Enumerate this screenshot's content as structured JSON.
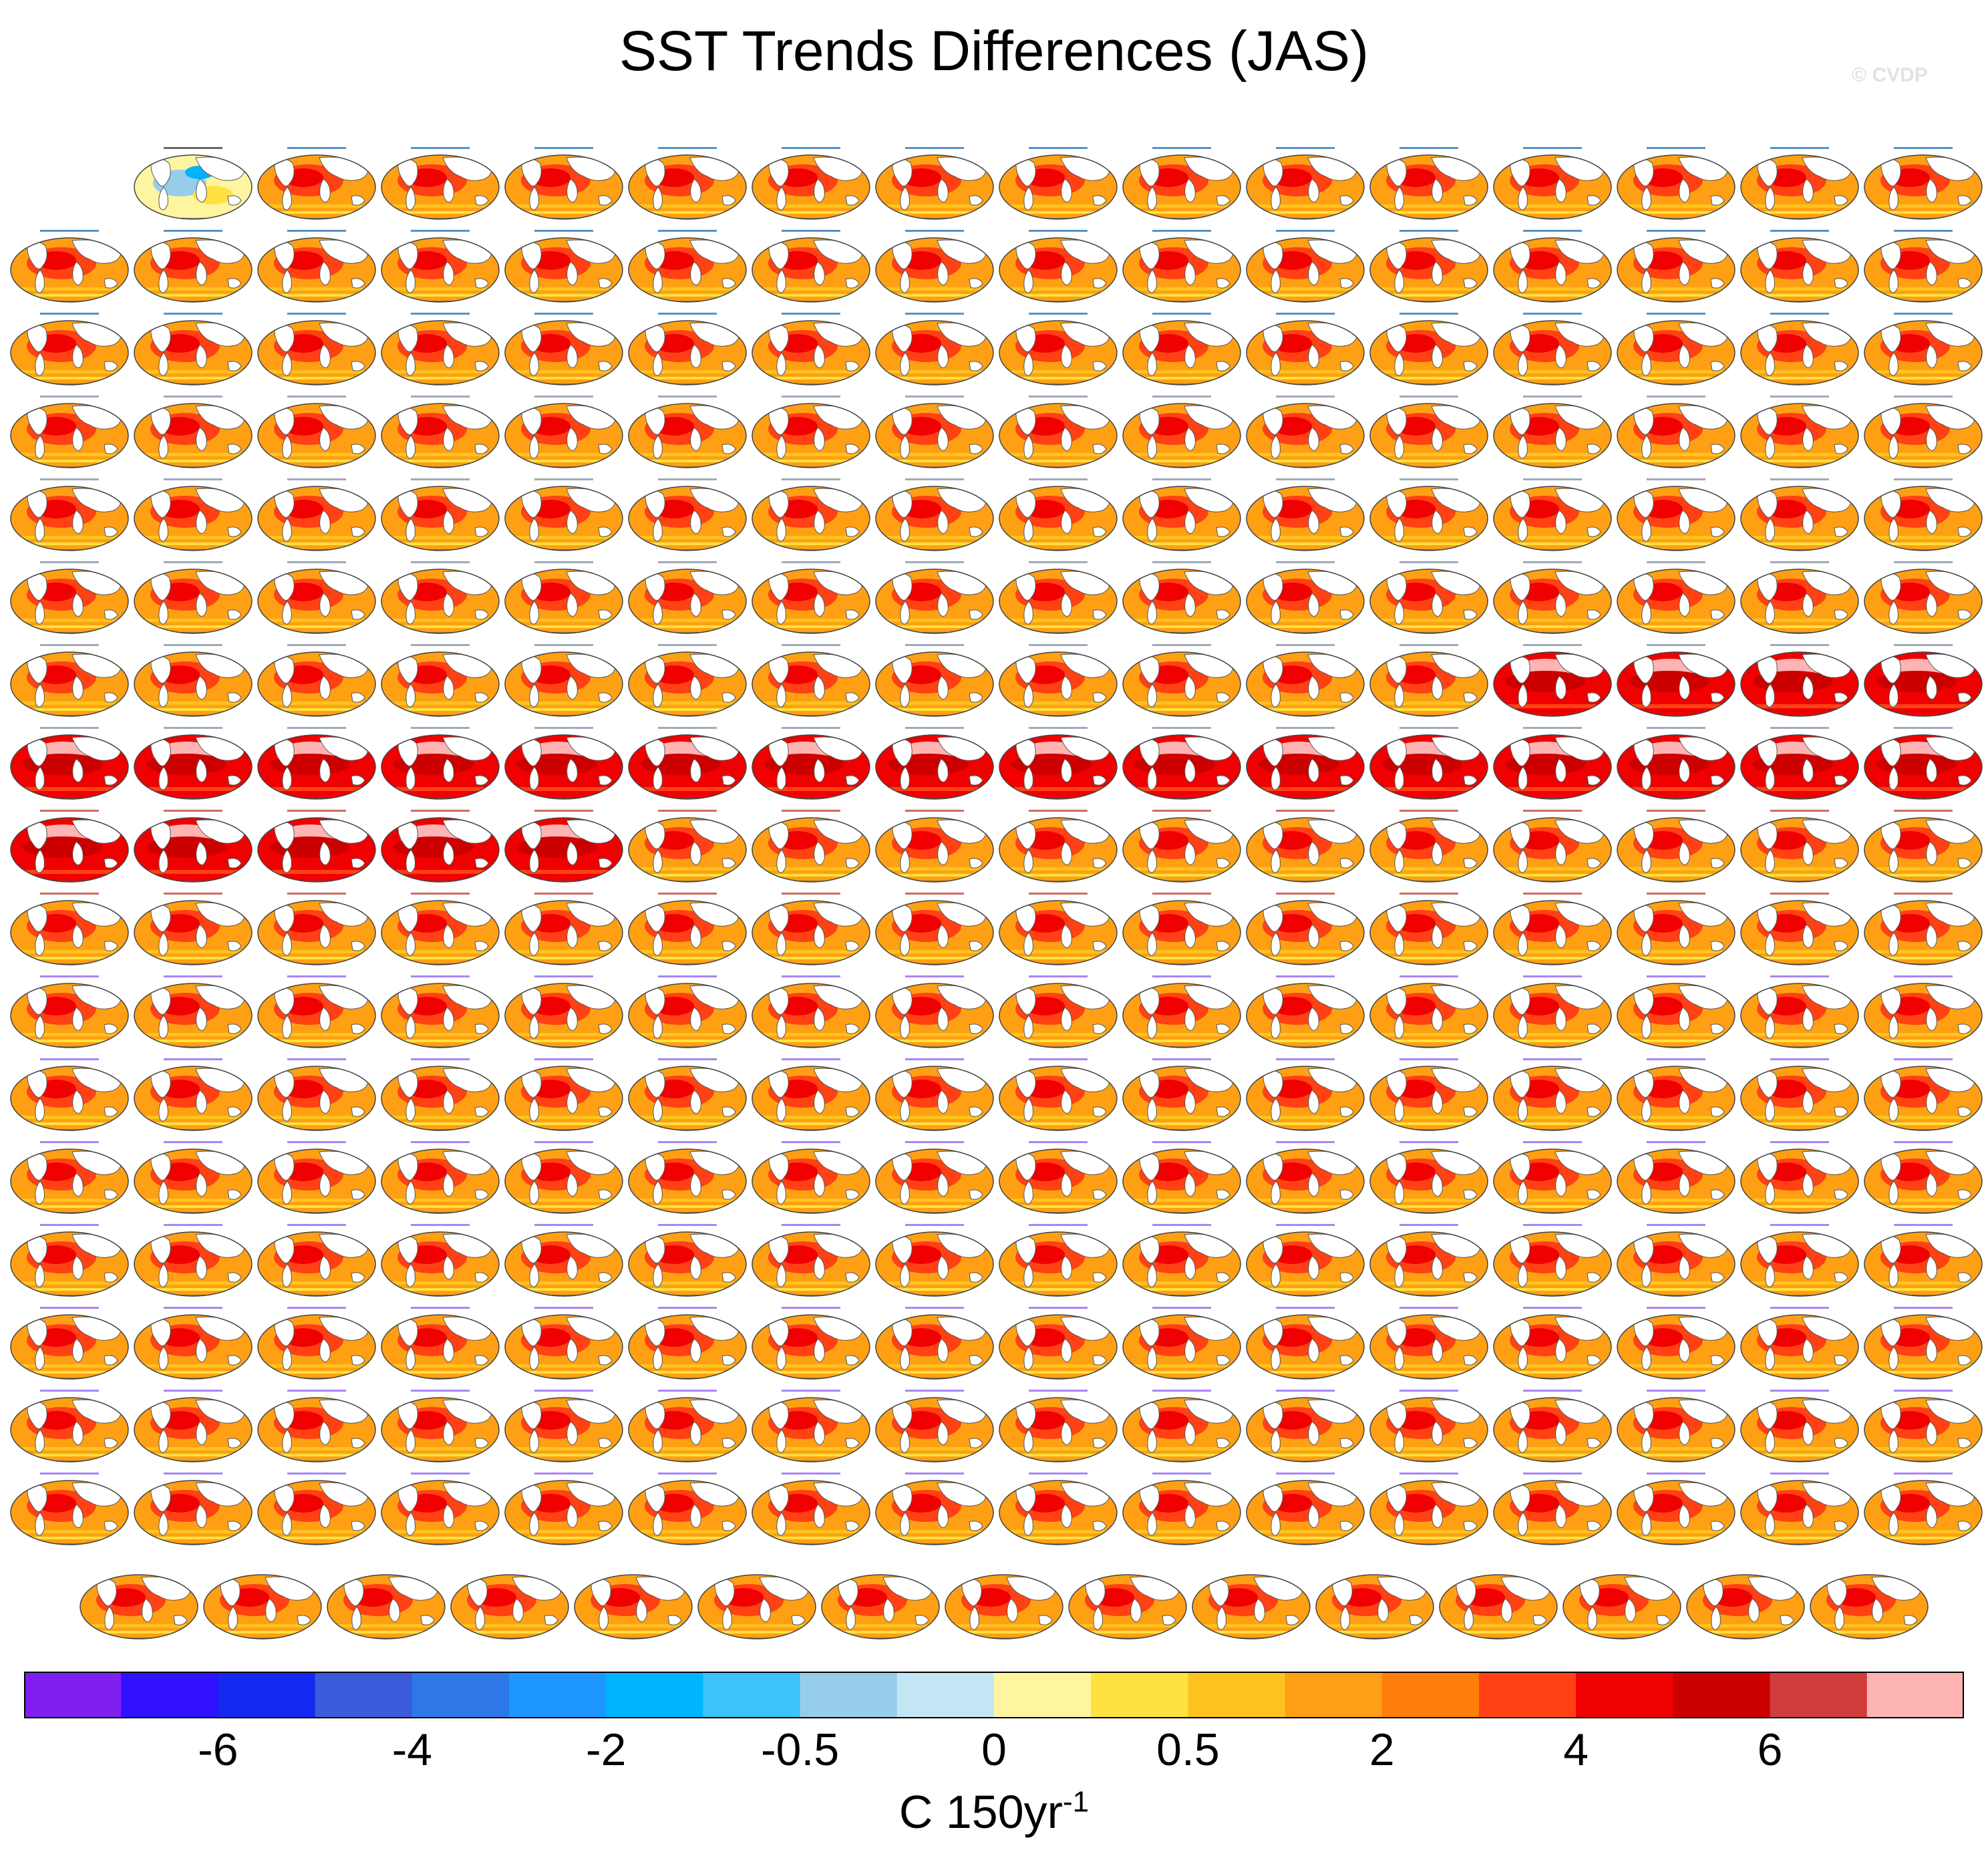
{
  "title": "SST Trends Differences (JAS)",
  "watermark": "© CVDP",
  "chart_data": {
    "type": "heatmap",
    "layout": "map panel grid",
    "rows": 18,
    "columns": 16,
    "first_panel_label": "HadISST-ERSST v5",
    "panel_title_groups": [
      {
        "prefix": "ACCESS-ESM1-5",
        "color": "#1f6fb4"
      },
      {
        "prefix": "CanESM5",
        "color": "#7e8fa3"
      },
      {
        "prefix": "CESM1",
        "color": "#c0392b"
      },
      {
        "prefix": "CESM2",
        "color": "#8b5cf6"
      }
    ],
    "colorbar": {
      "colors": [
        "#8020f0",
        "#3010ff",
        "#1428f0",
        "#3c5adc",
        "#2d78e6",
        "#1e96ff",
        "#00b4ff",
        "#3cc3fa",
        "#96cdeb",
        "#c3e6f5",
        "#fff5a0",
        "#ffe140",
        "#ffc31e",
        "#ffa014",
        "#ff7d0a",
        "#ff4114",
        "#f00000",
        "#cd0000",
        "#d23c3c",
        "#ffb4b4"
      ],
      "tick_labels": [
        "-6",
        "-4",
        "-2",
        "-0.5",
        "0",
        "0.5",
        "2",
        "4",
        "6"
      ],
      "tick_boundaries": [
        2,
        4,
        6,
        8,
        10,
        12,
        14,
        16,
        18
      ],
      "units_main": "C 150yr",
      "units_sup": "-1"
    }
  }
}
